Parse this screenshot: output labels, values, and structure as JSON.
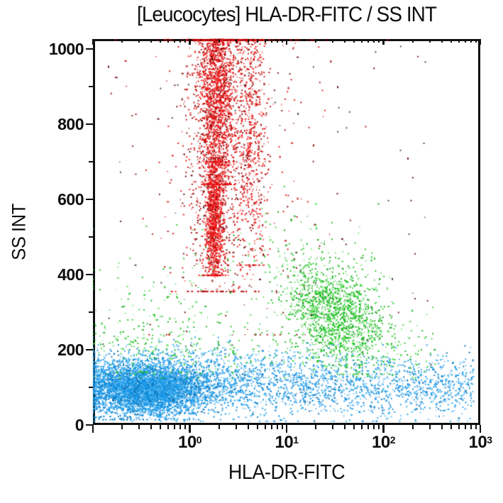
{
  "chart_data": {
    "type": "scatter",
    "title": "[Leucocytes] HLA-DR-FITC / SS INT",
    "xlabel": "HLA-DR-FITC",
    "ylabel": "SS INT",
    "x_scale": "log",
    "x_range_log10": [
      -1,
      3
    ],
    "y_range": [
      0,
      1026
    ],
    "grid": false,
    "legend": false,
    "x_major_ticks": [
      {
        "log10": -1,
        "label_base": "",
        "label_sup": ""
      },
      {
        "log10": 0,
        "label_base": "10",
        "label_sup": "0"
      },
      {
        "log10": 1,
        "label_base": "10",
        "label_sup": "1"
      },
      {
        "log10": 2,
        "label_base": "10",
        "label_sup": "2"
      },
      {
        "log10": 3,
        "label_base": "10",
        "label_sup": "3"
      }
    ],
    "x_minor_decades": [
      -1,
      0,
      1,
      2
    ],
    "x_minor_multiples": [
      2,
      3,
      4,
      5,
      6,
      7,
      8,
      9
    ],
    "y_major_ticks": [
      {
        "value": 0,
        "label": "0"
      },
      {
        "value": 200,
        "label": "200"
      },
      {
        "value": 400,
        "label": "400"
      },
      {
        "value": 600,
        "label": "600"
      },
      {
        "value": 800,
        "label": "800"
      },
      {
        "value": 1000,
        "label": "1000"
      }
    ],
    "y_minor_tick_values": [
      100,
      300,
      500,
      700,
      900
    ],
    "populations": [
      {
        "name": "blue-lymphocyte-core",
        "n": 4300,
        "colors": [
          "#1697e8",
          "#2da6ef",
          "#0d84d2",
          "#5cbcf4",
          "#0c6cad"
        ],
        "weights": [
          34,
          24,
          18,
          14,
          10
        ],
        "x": {
          "dist": "normal",
          "mu": -0.42,
          "sd": 0.3,
          "clip": [
            -1.0,
            0.55
          ]
        },
        "y": {
          "dist": "normal",
          "mu": 94,
          "sd": 33,
          "clip": [
            14,
            200
          ]
        }
      },
      {
        "name": "blue-lymphocyte-band",
        "n": 2900,
        "colors": [
          "#1697e8",
          "#2da6ef",
          "#0d84d2",
          "#5cbcf4",
          "#0c6cad"
        ],
        "weights": [
          34,
          24,
          18,
          14,
          10
        ],
        "x": {
          "dist": "power",
          "lo": -1.0,
          "hi": 2.93,
          "p": 1.35
        },
        "y": {
          "dist": "normal",
          "mu": 104,
          "sd": 40,
          "clip": [
            10,
            213
          ]
        }
      },
      {
        "name": "blue-upper-fringe",
        "n": 420,
        "colors": [
          "#2da6ef",
          "#5cbcf4",
          "#1697e8"
        ],
        "weights": [
          40,
          35,
          25
        ],
        "x": {
          "dist": "normal",
          "mu": 0.15,
          "sd": 0.95,
          "clip": [
            -1.0,
            2.9
          ]
        },
        "y": {
          "dist": "normal",
          "mu": 163,
          "sd": 30,
          "clip": [
            118,
            243
          ]
        }
      },
      {
        "name": "red-granulocyte-core-upper",
        "n": 1700,
        "colors": [
          "#ed1414",
          "#f20c0c",
          "#cf1010",
          "#a60808",
          "#ff5a5a"
        ],
        "weights": [
          34,
          24,
          20,
          10,
          12
        ],
        "x": {
          "dist": "normal",
          "mu": 0.28,
          "sd": 0.085,
          "clip": [
            -0.2,
            0.9
          ]
        },
        "y": {
          "dist": "normal",
          "mu": 910,
          "sd": 170,
          "clip": [
            640,
            1024
          ]
        }
      },
      {
        "name": "red-granulocyte-core-lower",
        "n": 1150,
        "colors": [
          "#ed1414",
          "#f20c0c",
          "#cf1010",
          "#a60808",
          "#ff5a5a"
        ],
        "weights": [
          36,
          26,
          18,
          8,
          12
        ],
        "x": {
          "dist": "normal",
          "mu": 0.255,
          "sd": 0.048,
          "clip": [
            0.0,
            0.6
          ]
        },
        "y": {
          "dist": "normal",
          "mu": 545,
          "sd": 105,
          "clip": [
            398,
            700
          ]
        }
      },
      {
        "name": "red-granulocyte-halo",
        "n": 1350,
        "colors": [
          "#d81111",
          "#b20c0c",
          "#8c0808",
          "#ef2020",
          "#5f0505"
        ],
        "weights": [
          30,
          25,
          15,
          20,
          10
        ],
        "x": {
          "dist": "normal",
          "mu": 0.3,
          "sd": 0.2,
          "clip": [
            -0.6,
            1.2
          ]
        },
        "y": {
          "dist": "normal",
          "mu": 810,
          "sd": 265,
          "clip": [
            355,
            1024
          ]
        }
      },
      {
        "name": "red-secondary-streak",
        "n": 620,
        "colors": [
          "#ed1414",
          "#cf1010",
          "#a60808",
          "#ff5a5a"
        ],
        "weights": [
          36,
          28,
          16,
          20
        ],
        "x": {
          "dist": "normal",
          "mu": 0.635,
          "sd": 0.075,
          "clip": [
            0.3,
            1.0
          ]
        },
        "y": {
          "dist": "normal",
          "mu": 830,
          "sd": 255,
          "clip": [
            425,
            1024
          ]
        }
      },
      {
        "name": "red-sparse-scatter",
        "n": 280,
        "colors": [
          "#cf1010",
          "#a60808",
          "#7d0707",
          "#ed1414"
        ],
        "weights": [
          30,
          28,
          20,
          22
        ],
        "x": {
          "dist": "normal",
          "mu": 0.55,
          "sd": 0.48,
          "clip": [
            -0.9,
            2.35
          ]
        },
        "y": {
          "dist": "normal",
          "mu": 750,
          "sd": 300,
          "clip": [
            240,
            1024
          ]
        }
      },
      {
        "name": "green-monocyte-main",
        "n": 1500,
        "rho": -0.35,
        "colors": [
          "#21c423",
          "#15b31a",
          "#0c9c12",
          "#3fd741",
          "#85e886"
        ],
        "weights": [
          30,
          25,
          15,
          18,
          12
        ],
        "x": {
          "dist": "normal",
          "mu": 1.5,
          "sd": 0.27,
          "clip": [
            0.6,
            2.6
          ]
        },
        "y": {
          "dist": "normal",
          "mu": 300,
          "sd": 72,
          "clip": [
            135,
            540
          ]
        }
      },
      {
        "name": "green-left-sparse",
        "n": 170,
        "colors": [
          "#21c423",
          "#15b31a",
          "#3fd741",
          "#85e886"
        ],
        "weights": [
          32,
          26,
          24,
          18
        ],
        "x": {
          "dist": "normal",
          "mu": -0.45,
          "sd": 0.42,
          "clip": [
            -1.0,
            0.45
          ]
        },
        "y": {
          "dist": "normal",
          "mu": 275,
          "sd": 100,
          "clip": [
            140,
            580
          ]
        }
      },
      {
        "name": "green-low-band",
        "n": 330,
        "colors": [
          "#21c423",
          "#15b31a",
          "#3fd741",
          "#85e886"
        ],
        "weights": [
          30,
          26,
          26,
          18
        ],
        "x": {
          "dist": "power",
          "lo": -1.0,
          "hi": 2.55,
          "p": 1.0
        },
        "y": {
          "dist": "normal",
          "mu": 207,
          "sd": 46,
          "clip": [
            125,
            335
          ]
        }
      },
      {
        "name": "green-high-sparse",
        "n": 85,
        "colors": [
          "#21c423",
          "#0c9c12",
          "#3fd741"
        ],
        "weights": [
          40,
          30,
          30
        ],
        "x": {
          "dist": "normal",
          "mu": 0.95,
          "sd": 0.45,
          "clip": [
            -0.2,
            2.2
          ]
        },
        "y": {
          "dist": "normal",
          "mu": 470,
          "sd": 75,
          "clip": [
            340,
            660
          ]
        }
      },
      {
        "name": "dark-debris-specks",
        "n": 80,
        "colors": [
          "#5a0a0a",
          "#3f3f3f",
          "#7a1a1a",
          "#444444",
          "#224466"
        ],
        "weights": [
          28,
          22,
          20,
          18,
          12
        ],
        "x": {
          "dist": "power",
          "lo": -0.95,
          "hi": 2.5,
          "p": 1.0
        },
        "y": {
          "dist": "uniform",
          "lo": 150,
          "hi": 1010
        }
      }
    ]
  }
}
